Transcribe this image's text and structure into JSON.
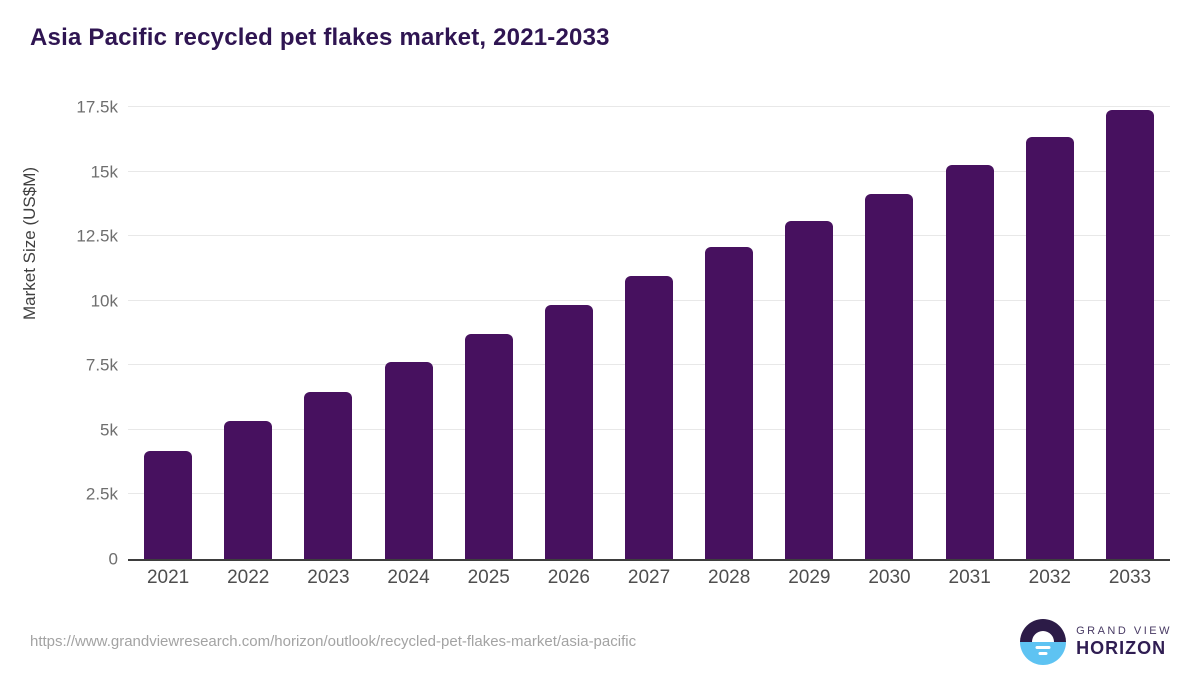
{
  "title": "Asia Pacific recycled pet flakes market, 2021-2033",
  "chart_data": {
    "type": "bar",
    "title": "Asia Pacific recycled pet flakes market, 2021-2033",
    "categories": [
      "2021",
      "2022",
      "2023",
      "2024",
      "2025",
      "2026",
      "2027",
      "2028",
      "2029",
      "2030",
      "2031",
      "2032",
      "2033"
    ],
    "values": [
      4200,
      5330,
      6460,
      7610,
      8730,
      9830,
      10950,
      12080,
      13090,
      14130,
      15260,
      16320,
      17370
    ],
    "xlabel": "",
    "ylabel": "Market Size (US$M)",
    "ylim": [
      0,
      17500
    ],
    "yticks": [
      {
        "value": 0,
        "label": "0"
      },
      {
        "value": 2500,
        "label": "2.5k"
      },
      {
        "value": 5000,
        "label": "5k"
      },
      {
        "value": 7500,
        "label": "7.5k"
      },
      {
        "value": 10000,
        "label": "10k"
      },
      {
        "value": 12500,
        "label": "12.5k"
      },
      {
        "value": 15000,
        "label": "15k"
      },
      {
        "value": 17500,
        "label": "17.5k"
      }
    ],
    "grid": true,
    "legend": "none",
    "bar_color": "#47115f"
  },
  "footer": {
    "source_url": "https://www.grandviewresearch.com/horizon/outlook/recycled-pet-flakes-market/asia-pacific"
  },
  "logo": {
    "line1": "GRAND VIEW",
    "line2": "HORIZON",
    "circle_top_color": "#2c1b47",
    "circle_bottom_color": "#5ec3f2"
  },
  "colors": {
    "title": "#2f1552",
    "bar": "#47115f",
    "gridline": "#e8e8e8",
    "axis_line": "#3d3d3d",
    "y_tick_text": "#6e6e6e",
    "x_tick_text": "#4e4e4e",
    "footer_text": "#a3a3a3"
  }
}
